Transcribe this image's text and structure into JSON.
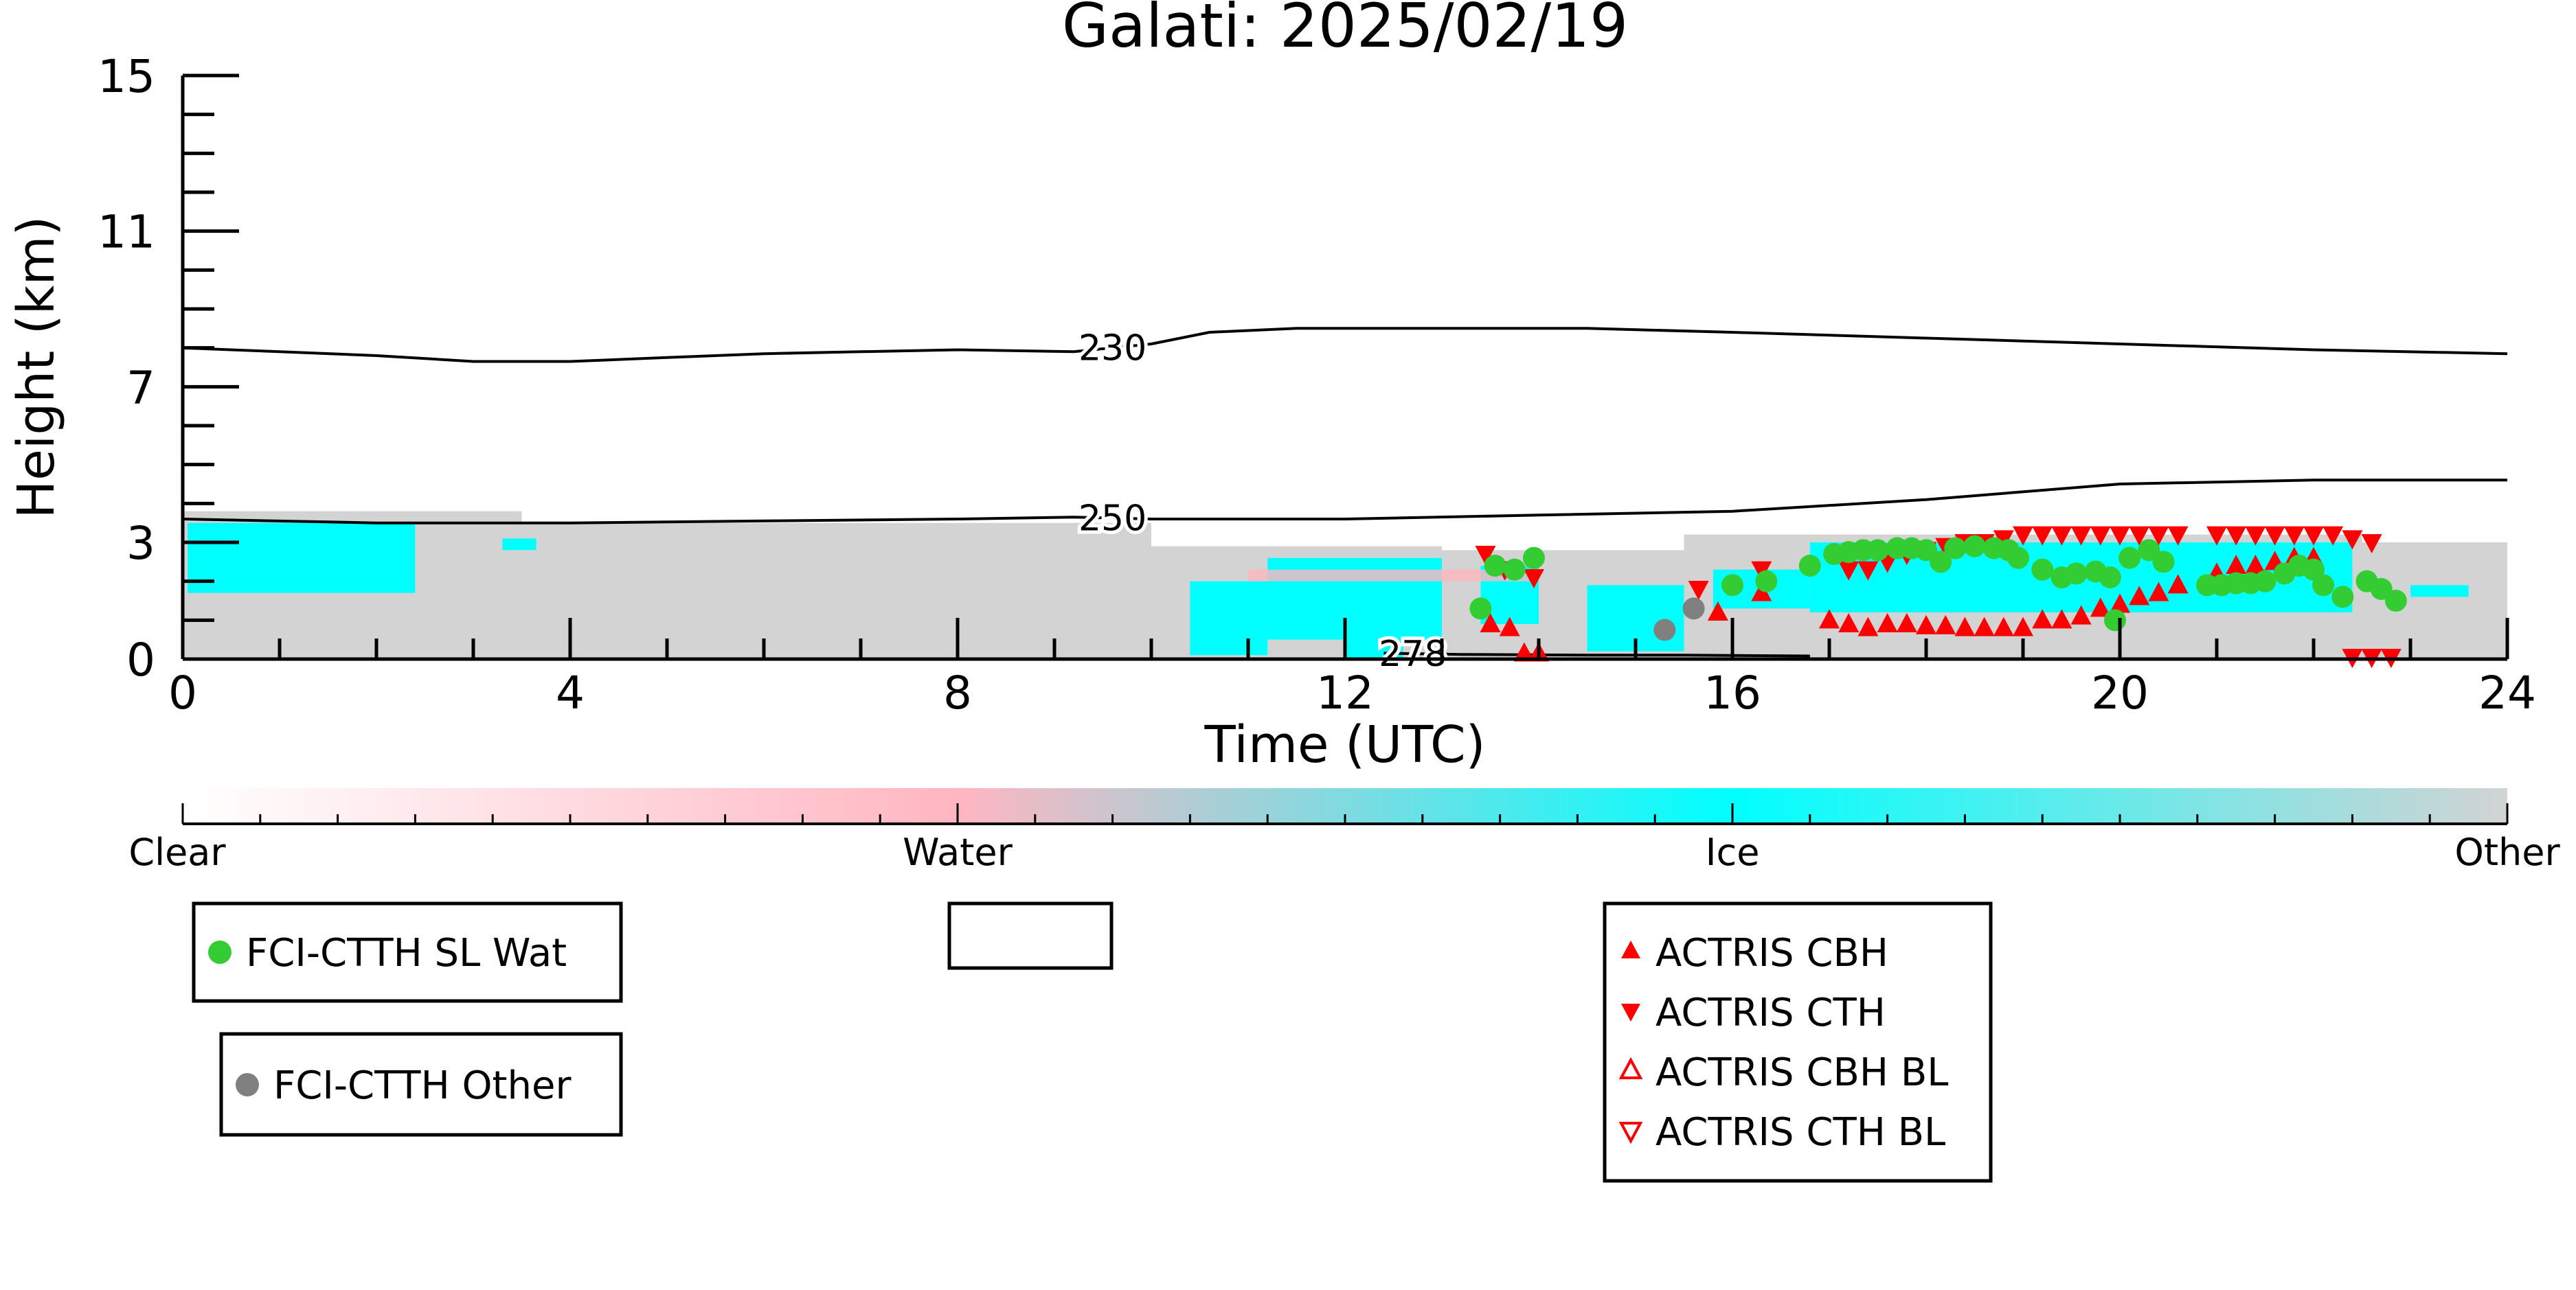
{
  "chart_data": {
    "type": "scatter",
    "title": "Galati: 2025/02/19",
    "xlabel": "Time (UTC)",
    "ylabel": "Height (km)",
    "xlim": [
      0,
      24
    ],
    "ylim": [
      0,
      15
    ],
    "x_ticks": [
      0,
      4,
      8,
      12,
      16,
      20,
      24
    ],
    "y_ticks": [
      0,
      3,
      7,
      11,
      15
    ],
    "colorbar": {
      "labels": [
        "Clear",
        "Water",
        "Ice",
        "Other"
      ],
      "colors": {
        "clear": "#ffffff",
        "water": "#ffb6c1",
        "ice": "#00ffff",
        "other": "#d3d3d3"
      }
    },
    "background": {
      "other_color": "#d3d3d3",
      "ice_color": "#00ffff",
      "water_color": "#ffb6c1"
    },
    "isotherms": [
      {
        "label": "230",
        "label_at": 9.6,
        "points": [
          [
            0,
            8.0
          ],
          [
            1,
            7.9
          ],
          [
            2,
            7.8
          ],
          [
            3,
            7.65
          ],
          [
            4,
            7.65
          ],
          [
            5,
            7.75
          ],
          [
            6,
            7.85
          ],
          [
            7,
            7.9
          ],
          [
            8,
            7.95
          ],
          [
            9.2,
            7.9
          ],
          [
            10,
            8.1
          ],
          [
            10.6,
            8.4
          ],
          [
            11.5,
            8.5
          ],
          [
            13,
            8.5
          ],
          [
            14.5,
            8.5
          ],
          [
            16,
            8.4
          ],
          [
            18,
            8.25
          ],
          [
            20,
            8.1
          ],
          [
            22,
            7.95
          ],
          [
            24,
            7.85
          ]
        ]
      },
      {
        "label": "250",
        "label_at": 9.6,
        "points": [
          [
            0,
            3.6
          ],
          [
            2,
            3.5
          ],
          [
            4,
            3.5
          ],
          [
            6,
            3.55
          ],
          [
            8,
            3.6
          ],
          [
            9.2,
            3.65
          ],
          [
            10,
            3.6
          ],
          [
            12,
            3.6
          ],
          [
            14,
            3.7
          ],
          [
            16,
            3.8
          ],
          [
            18,
            4.1
          ],
          [
            20,
            4.5
          ],
          [
            22,
            4.6
          ],
          [
            24,
            4.6
          ]
        ]
      },
      {
        "label": "278",
        "label_at": 12.7,
        "points": [
          [
            12.4,
            0.15
          ],
          [
            13.2,
            0.12
          ],
          [
            14.5,
            0.1
          ],
          [
            15.5,
            0.1
          ],
          [
            16.8,
            0.08
          ]
        ]
      }
    ],
    "series": [
      {
        "name": "FCI-CTTH SL Wat",
        "marker": "circle",
        "color": "#33cc33",
        "points": [
          [
            13.4,
            1.3
          ],
          [
            13.55,
            2.4
          ],
          [
            13.75,
            2.3
          ],
          [
            13.95,
            2.6
          ],
          [
            16.0,
            1.9
          ],
          [
            16.35,
            2.0
          ],
          [
            16.8,
            2.4
          ],
          [
            17.05,
            2.7
          ],
          [
            17.2,
            2.75
          ],
          [
            17.35,
            2.8
          ],
          [
            17.5,
            2.8
          ],
          [
            17.7,
            2.85
          ],
          [
            17.85,
            2.85
          ],
          [
            18.0,
            2.8
          ],
          [
            18.15,
            2.5
          ],
          [
            18.3,
            2.85
          ],
          [
            18.5,
            2.9
          ],
          [
            18.7,
            2.85
          ],
          [
            18.85,
            2.8
          ],
          [
            18.95,
            2.6
          ],
          [
            19.2,
            2.3
          ],
          [
            19.4,
            2.1
          ],
          [
            19.55,
            2.2
          ],
          [
            19.75,
            2.25
          ],
          [
            19.9,
            2.1
          ],
          [
            19.95,
            1.0
          ],
          [
            20.1,
            2.6
          ],
          [
            20.3,
            2.8
          ],
          [
            20.45,
            2.5
          ],
          [
            20.9,
            1.9
          ],
          [
            21.05,
            1.9
          ],
          [
            21.2,
            1.95
          ],
          [
            21.35,
            1.95
          ],
          [
            21.5,
            2.0
          ],
          [
            21.7,
            2.2
          ],
          [
            21.85,
            2.4
          ],
          [
            22.0,
            2.3
          ],
          [
            22.1,
            1.9
          ],
          [
            22.3,
            1.6
          ],
          [
            22.55,
            2.0
          ],
          [
            22.7,
            1.8
          ],
          [
            22.85,
            1.5
          ]
        ]
      },
      {
        "name": "FCI-CTTH Other",
        "marker": "circle",
        "color": "#808080",
        "points": [
          [
            15.3,
            0.75
          ],
          [
            15.6,
            1.3
          ]
        ]
      },
      {
        "name": "ACTRIS CBH",
        "marker": "triangle-up",
        "color": "#ff0000",
        "points": [
          [
            13.5,
            0.9
          ],
          [
            13.7,
            0.8
          ],
          [
            13.85,
            0.15
          ],
          [
            14.0,
            0.15
          ],
          [
            15.85,
            1.2
          ],
          [
            16.3,
            1.7
          ],
          [
            17.0,
            1.0
          ],
          [
            17.2,
            0.9
          ],
          [
            17.4,
            0.8
          ],
          [
            17.6,
            0.9
          ],
          [
            17.8,
            0.9
          ],
          [
            18.0,
            0.85
          ],
          [
            18.2,
            0.85
          ],
          [
            18.4,
            0.8
          ],
          [
            18.6,
            0.8
          ],
          [
            18.8,
            0.8
          ],
          [
            19.0,
            0.8
          ],
          [
            19.2,
            1.0
          ],
          [
            19.4,
            1.0
          ],
          [
            19.6,
            1.1
          ],
          [
            19.8,
            1.3
          ],
          [
            20.0,
            1.4
          ],
          [
            20.2,
            1.6
          ],
          [
            20.4,
            1.7
          ],
          [
            20.6,
            1.9
          ],
          [
            21.0,
            2.2
          ],
          [
            21.2,
            2.4
          ],
          [
            21.4,
            2.4
          ],
          [
            21.6,
            2.5
          ],
          [
            21.8,
            2.6
          ],
          [
            22.0,
            2.6
          ]
        ]
      },
      {
        "name": "ACTRIS CTH",
        "marker": "triangle-down",
        "color": "#ff0000",
        "points": [
          [
            13.45,
            2.7
          ],
          [
            13.65,
            2.3
          ],
          [
            13.95,
            2.1
          ],
          [
            15.65,
            1.8
          ],
          [
            16.3,
            2.3
          ],
          [
            17.2,
            2.3
          ],
          [
            17.4,
            2.3
          ],
          [
            17.6,
            2.5
          ],
          [
            17.8,
            2.7
          ],
          [
            18.0,
            2.8
          ],
          [
            18.2,
            2.9
          ],
          [
            18.4,
            3.0
          ],
          [
            18.6,
            3.0
          ],
          [
            18.8,
            3.1
          ],
          [
            19.0,
            3.2
          ],
          [
            19.2,
            3.2
          ],
          [
            19.4,
            3.2
          ],
          [
            19.6,
            3.2
          ],
          [
            19.8,
            3.2
          ],
          [
            20.0,
            3.2
          ],
          [
            20.2,
            3.2
          ],
          [
            20.4,
            3.2
          ],
          [
            20.6,
            3.2
          ],
          [
            21.0,
            3.2
          ],
          [
            21.2,
            3.2
          ],
          [
            21.4,
            3.2
          ],
          [
            21.6,
            3.2
          ],
          [
            21.8,
            3.2
          ],
          [
            22.0,
            3.2
          ],
          [
            22.2,
            3.2
          ],
          [
            22.4,
            3.1
          ],
          [
            22.6,
            3.0
          ]
        ]
      },
      {
        "name": "ACTRIS CBH BL",
        "marker": "triangle-up-open",
        "color": "#ff0000",
        "points": []
      },
      {
        "name": "ACTRIS CTH BL",
        "marker": "triangle-down-open",
        "color": "#ff0000",
        "points": [
          [
            22.4,
            0.05
          ],
          [
            22.6,
            0.05
          ],
          [
            22.8,
            0.05
          ]
        ]
      }
    ]
  }
}
